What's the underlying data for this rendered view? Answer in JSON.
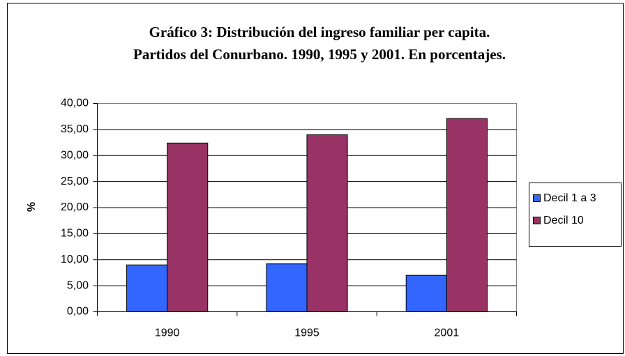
{
  "chart_data": {
    "type": "bar",
    "title": [
      "Gráfico 3: Distribución del ingreso familiar per capita.",
      "Partidos del Conurbano. 1990, 1995 y 2001. En porcentajes."
    ],
    "y_label": "%",
    "categories": [
      "1990",
      "1995",
      "2001"
    ],
    "series": [
      {
        "name": "Decil 1 a 3",
        "color": "#3366ff",
        "values": [
          9.0,
          9.2,
          7.0
        ]
      },
      {
        "name": "Decil 10",
        "color": "#993366",
        "values": [
          32.4,
          34.0,
          37.1
        ]
      }
    ],
    "ylim": [
      0,
      40
    ],
    "yticks": [
      {
        "value": 0,
        "label": "0,00"
      },
      {
        "value": 5,
        "label": "5,00"
      },
      {
        "value": 10,
        "label": "10,00"
      },
      {
        "value": 15,
        "label": "15,00"
      },
      {
        "value": 20,
        "label": "20,00"
      },
      {
        "value": 25,
        "label": "25,00"
      },
      {
        "value": 30,
        "label": "30,00"
      },
      {
        "value": 35,
        "label": "35,00"
      },
      {
        "value": 40,
        "label": "40,00"
      }
    ],
    "grid": true,
    "legend": "right"
  }
}
